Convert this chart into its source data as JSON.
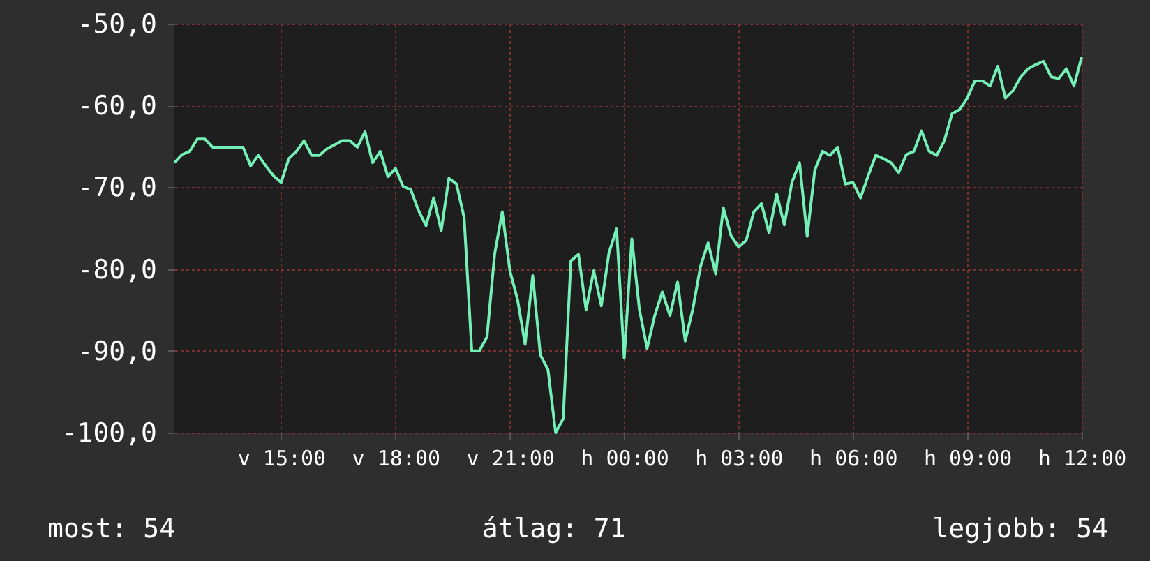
{
  "chart_data": {
    "type": "line",
    "categories": [
      null,
      null,
      null,
      null,
      null,
      null,
      null,
      null,
      null,
      null,
      null,
      null,
      null,
      null,
      "v 15:00",
      null,
      null,
      null,
      null,
      null,
      null,
      null,
      null,
      null,
      null,
      null,
      null,
      null,
      null,
      "v 18:00",
      null,
      null,
      null,
      null,
      null,
      null,
      null,
      null,
      null,
      null,
      null,
      null,
      null,
      null,
      "v 21:00",
      null,
      null,
      null,
      null,
      null,
      null,
      null,
      null,
      null,
      null,
      null,
      null,
      null,
      null,
      "h 00:00",
      null,
      null,
      null,
      null,
      null,
      null,
      null,
      null,
      null,
      null,
      null,
      null,
      null,
      null,
      "h 03:00",
      null,
      null,
      null,
      null,
      null,
      null,
      null,
      null,
      null,
      null,
      null,
      null,
      null,
      null,
      "h 06:00",
      null,
      null,
      null,
      null,
      null,
      null,
      null,
      null,
      null,
      null,
      null,
      null,
      null,
      null,
      "h 09:00",
      null,
      null,
      null,
      null,
      null,
      null,
      null,
      null,
      null,
      null,
      null,
      null,
      null,
      null,
      "h 12:00"
    ],
    "series": [
      {
        "color": "#74f0b6",
        "values": [
          -67.0,
          -66.0,
          -65.6,
          -64.1,
          -64.1,
          -65.1,
          -65.1,
          -65.1,
          -65.1,
          -65.1,
          -67.4,
          -66.1,
          -67.4,
          -68.6,
          -69.4,
          -66.5,
          -65.6,
          -64.3,
          -66.1,
          -66.1,
          -65.3,
          -64.8,
          -64.3,
          -64.3,
          -65.1,
          -63.2,
          -67.0,
          -65.6,
          -68.7,
          -67.7,
          -69.9,
          -70.3,
          -72.8,
          -74.7,
          -71.3,
          -75.3,
          -68.9,
          -69.6,
          -73.7,
          -90.0,
          -90.0,
          -88.3,
          -78.2,
          -73.0,
          -80.2,
          -83.7,
          -89.2,
          -80.8,
          -90.5,
          -92.3,
          -100.0,
          -98.3,
          -79.0,
          -78.2,
          -85.0,
          -80.2,
          -84.5,
          -78.0,
          -75.1,
          -90.9,
          -76.3,
          -85.0,
          -89.7,
          -85.7,
          -82.8,
          -85.7,
          -81.6,
          -88.8,
          -84.9,
          -79.7,
          -76.8,
          -80.6,
          -72.5,
          -75.9,
          -77.3,
          -76.5,
          -73.0,
          -72.0,
          -75.6,
          -70.8,
          -74.6,
          -69.4,
          -67.0,
          -76.0,
          -67.9,
          -65.6,
          -66.1,
          -65.1,
          -69.6,
          -69.4,
          -71.3,
          -68.6,
          -66.1,
          -66.5,
          -67.0,
          -68.2,
          -66.0,
          -65.6,
          -63.1,
          -65.6,
          -66.1,
          -64.3,
          -61.0,
          -60.5,
          -59.1,
          -57.0,
          -57.0,
          -57.6,
          -55.2,
          -59.1,
          -58.2,
          -56.5,
          -55.5,
          -55.0,
          -54.6,
          -56.5,
          -56.7,
          -55.5,
          -57.6,
          -54.1
        ]
      }
    ],
    "ylim": [
      -100,
      -50
    ],
    "yticks": [
      {
        "value": -100,
        "label": "-100,0"
      },
      {
        "value": -90,
        "label": "-90,0"
      },
      {
        "value": -80,
        "label": "-80,0"
      },
      {
        "value": -70,
        "label": "-70,0"
      },
      {
        "value": -60,
        "label": "-60,0"
      },
      {
        "value": -50,
        "label": "-50,0"
      }
    ],
    "grid": true,
    "annotations": [
      "most: 54",
      "átlag: 71",
      "legjobb: 54"
    ]
  }
}
